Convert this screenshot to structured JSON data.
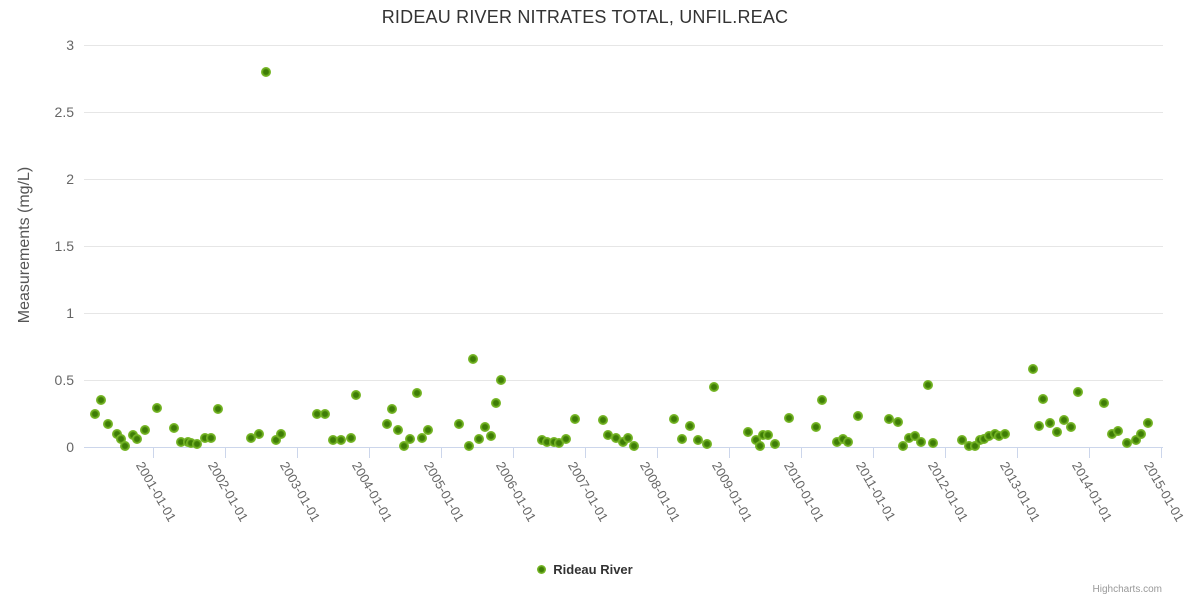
{
  "title": "RIDEAU RIVER NITRATES TOTAL, UNFIL.REAC",
  "y_axis": {
    "title": "Measurements (mg/L)",
    "tick_values": [
      0,
      0.5,
      1,
      1.5,
      2,
      2.5,
      3
    ],
    "tick_labels": [
      "0",
      "0.5",
      "1",
      "1.5",
      "2",
      "2.5",
      "3"
    ]
  },
  "x_axis": {
    "tick_labels": [
      "2001-01-01",
      "2002-01-01",
      "2003-01-01",
      "2004-01-01",
      "2005-01-01",
      "2006-01-01",
      "2007-01-01",
      "2008-01-01",
      "2009-01-01",
      "2010-01-01",
      "2011-01-01",
      "2012-01-01",
      "2013-01-01",
      "2014-01-01",
      "2015-01-01"
    ]
  },
  "legend": {
    "label": "Rideau River"
  },
  "credits": "Highcharts.com",
  "colors": {
    "point_outer": "#76b626",
    "point_inner": "#3e7d06",
    "gridline": "#e6e6e6",
    "axis_line": "#ccd6eb",
    "label_text": "#666666",
    "title_text": "#333333",
    "credits_text": "#999999"
  },
  "chart_data": {
    "type": "scatter",
    "title": "RIDEAU RIVER NITRATES TOTAL, UNFIL.REAC",
    "xlabel": "",
    "ylabel": "Measurements (mg/L)",
    "ylim": [
      0,
      3
    ],
    "x_range": [
      "2000-01-15",
      "2015-01-11"
    ],
    "grid": "horizontal-only",
    "legend_position": "bottom-center",
    "series": [
      {
        "name": "Rideau River",
        "color": "#76b626",
        "points": [
          [
            "2000-03-10",
            0.25
          ],
          [
            "2000-04-10",
            0.35
          ],
          [
            "2000-05-15",
            0.17
          ],
          [
            "2000-07-04",
            0.1
          ],
          [
            "2000-07-23",
            0.06
          ],
          [
            "2000-08-12",
            0.01
          ],
          [
            "2000-09-22",
            0.09
          ],
          [
            "2000-10-13",
            0.06
          ],
          [
            "2000-11-22",
            0.13
          ],
          [
            "2001-01-21",
            0.29
          ],
          [
            "2001-04-15",
            0.14
          ],
          [
            "2001-05-21",
            0.04
          ],
          [
            "2001-06-25",
            0.04
          ],
          [
            "2001-07-13",
            0.03
          ],
          [
            "2001-08-12",
            0.02
          ],
          [
            "2001-09-21",
            0.07
          ],
          [
            "2001-10-20",
            0.07
          ],
          [
            "2001-11-28",
            0.28
          ],
          [
            "2002-05-11",
            0.07
          ],
          [
            "2002-06-23",
            0.1
          ],
          [
            "2002-07-27",
            2.8
          ],
          [
            "2002-09-16",
            0.05
          ],
          [
            "2002-10-10",
            0.1
          ],
          [
            "2003-04-13",
            0.25
          ],
          [
            "2003-05-24",
            0.25
          ],
          [
            "2003-07-03",
            0.05
          ],
          [
            "2003-08-14",
            0.05
          ],
          [
            "2003-09-30",
            0.07
          ],
          [
            "2003-10-26",
            0.39
          ],
          [
            "2004-04-01",
            0.17
          ],
          [
            "2004-04-26",
            0.28
          ],
          [
            "2004-05-27",
            0.13
          ],
          [
            "2004-06-26",
            0.01
          ],
          [
            "2004-07-27",
            0.06
          ],
          [
            "2004-09-01",
            0.4
          ],
          [
            "2004-09-26",
            0.07
          ],
          [
            "2004-10-26",
            0.13
          ],
          [
            "2005-04-02",
            0.17
          ],
          [
            "2005-05-22",
            0.01
          ],
          [
            "2005-06-11",
            0.66
          ],
          [
            "2005-07-13",
            0.06
          ],
          [
            "2005-08-11",
            0.15
          ],
          [
            "2005-09-10",
            0.08
          ],
          [
            "2005-10-05",
            0.33
          ],
          [
            "2005-10-30",
            0.5
          ],
          [
            "2006-05-27",
            0.05
          ],
          [
            "2006-06-21",
            0.04
          ],
          [
            "2006-07-27",
            0.04
          ],
          [
            "2006-08-21",
            0.03
          ],
          [
            "2006-09-26",
            0.06
          ],
          [
            "2006-11-11",
            0.21
          ],
          [
            "2007-04-01",
            0.2
          ],
          [
            "2007-04-26",
            0.09
          ],
          [
            "2007-06-06",
            0.07
          ],
          [
            "2007-07-12",
            0.04
          ],
          [
            "2007-08-06",
            0.07
          ],
          [
            "2007-09-06",
            0.01
          ],
          [
            "2008-03-27",
            0.21
          ],
          [
            "2008-05-07",
            0.06
          ],
          [
            "2008-06-17",
            0.16
          ],
          [
            "2008-07-27",
            0.05
          ],
          [
            "2008-09-11",
            0.02
          ],
          [
            "2008-10-16",
            0.45
          ],
          [
            "2009-04-06",
            0.11
          ],
          [
            "2009-05-17",
            0.05
          ],
          [
            "2009-06-06",
            0.01
          ],
          [
            "2009-06-21",
            0.09
          ],
          [
            "2009-07-17",
            0.09
          ],
          [
            "2009-08-21",
            0.02
          ],
          [
            "2009-10-31",
            0.22
          ],
          [
            "2010-03-18",
            0.15
          ],
          [
            "2010-04-15",
            0.35
          ],
          [
            "2010-06-30",
            0.04
          ],
          [
            "2010-08-03",
            0.06
          ],
          [
            "2010-08-29",
            0.04
          ],
          [
            "2010-10-19",
            0.23
          ],
          [
            "2011-03-24",
            0.21
          ],
          [
            "2011-05-09",
            0.19
          ],
          [
            "2011-05-31",
            0.01
          ],
          [
            "2011-07-03",
            0.07
          ],
          [
            "2011-08-01",
            0.08
          ],
          [
            "2011-08-30",
            0.04
          ],
          [
            "2011-10-08",
            0.46
          ],
          [
            "2011-10-30",
            0.03
          ],
          [
            "2012-03-27",
            0.05
          ],
          [
            "2012-05-02",
            0.01
          ],
          [
            "2012-06-01",
            0.01
          ],
          [
            "2012-06-26",
            0.05
          ],
          [
            "2012-07-17",
            0.06
          ],
          [
            "2012-08-11",
            0.08
          ],
          [
            "2012-09-11",
            0.1
          ],
          [
            "2012-10-01",
            0.08
          ],
          [
            "2012-11-01",
            0.1
          ],
          [
            "2013-03-20",
            0.58
          ],
          [
            "2013-04-24",
            0.16
          ],
          [
            "2013-05-13",
            0.36
          ],
          [
            "2013-06-17",
            0.18
          ],
          [
            "2013-07-20",
            0.11
          ],
          [
            "2013-08-28",
            0.2
          ],
          [
            "2013-10-01",
            0.15
          ],
          [
            "2013-11-07",
            0.41
          ],
          [
            "2014-03-17",
            0.33
          ],
          [
            "2014-04-26",
            0.1
          ],
          [
            "2014-05-27",
            0.12
          ],
          [
            "2014-07-12",
            0.03
          ],
          [
            "2014-08-26",
            0.05
          ],
          [
            "2014-09-21",
            0.1
          ],
          [
            "2014-10-26",
            0.18
          ]
        ]
      }
    ]
  }
}
